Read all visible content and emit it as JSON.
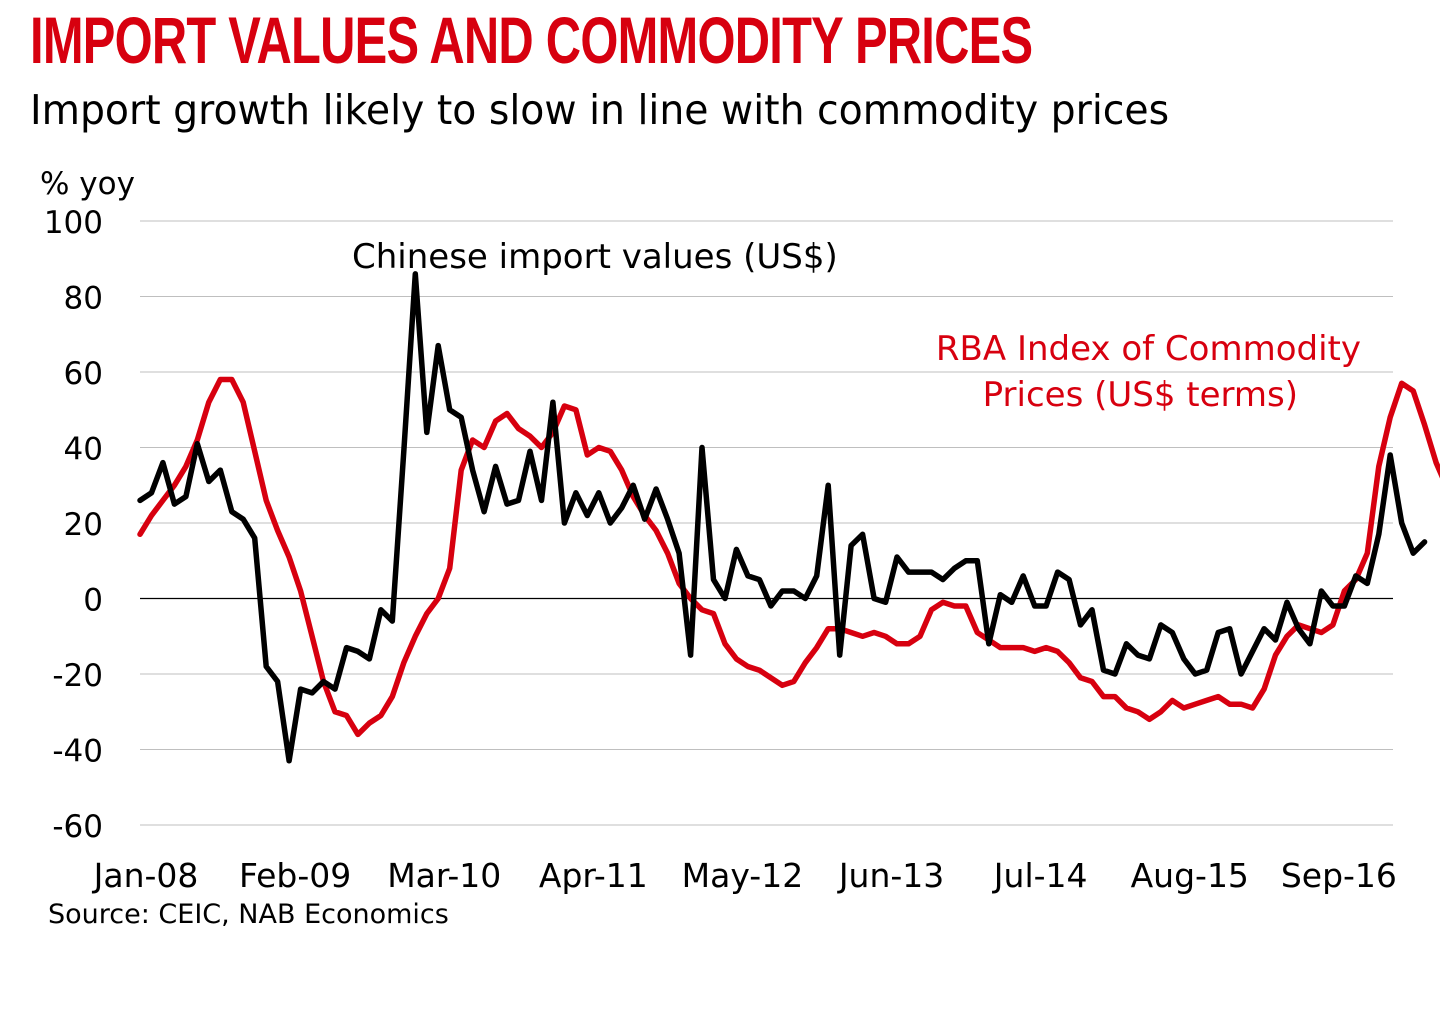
{
  "title": "IMPORT VALUES AND COMMODITY PRICES",
  "subtitle": "Import growth likely to slow in line with commodity prices",
  "source": "Source: CEIC, NAB Economics",
  "colors": {
    "title": "#d7000f",
    "commodity_series": "#d7000f",
    "import_series": "#000000",
    "grid": "#bfbfbf"
  },
  "chart_data": {
    "type": "line",
    "ylabel": "% yoy",
    "ylim": [
      -60,
      100
    ],
    "y_ticks": [
      100,
      80,
      60,
      40,
      20,
      0,
      -20,
      -40,
      -60
    ],
    "x_tick_labels": [
      "Jan-08",
      "Feb-09",
      "Mar-10",
      "Apr-11",
      "May-12",
      "Jun-13",
      "Jul-14",
      "Aug-15",
      "Sep-16"
    ],
    "grid": true,
    "series": [
      {
        "name": "Chinese import values (US$)",
        "color": "#000000",
        "start": "Jan-08",
        "frequency": "monthly",
        "values": [
          26,
          28,
          36,
          25,
          27,
          41,
          31,
          34,
          23,
          21,
          16,
          -18,
          -22,
          -43,
          -24,
          -25,
          -22,
          -24,
          -13,
          -14,
          -16,
          -3,
          -6,
          39,
          86,
          44,
          67,
          50,
          48,
          34,
          23,
          35,
          25,
          26,
          39,
          26,
          52,
          20,
          28,
          22,
          28,
          20,
          24,
          30,
          21,
          29,
          21,
          12,
          -15,
          40,
          5,
          0,
          13,
          6,
          5,
          -2,
          2,
          2,
          0,
          6,
          30,
          -15,
          14,
          17,
          0,
          -1,
          11,
          7,
          7,
          7,
          5,
          8,
          10,
          10,
          -12,
          1,
          -1,
          6,
          -2,
          -2,
          7,
          5,
          -7,
          -3,
          -19,
          -20,
          -12,
          -15,
          -16,
          -7,
          -9,
          -16,
          -20,
          -19,
          -9,
          -8,
          -20,
          -14,
          -8,
          -11,
          -1,
          -8,
          -12,
          2,
          -2,
          -2,
          6,
          4,
          17,
          38,
          20,
          12,
          15
        ]
      },
      {
        "name": "RBA Index of Commodity Prices (US$ terms)",
        "color": "#d7000f",
        "start": "Jan-08",
        "frequency": "monthly",
        "values": [
          17,
          22,
          26,
          30,
          35,
          42,
          52,
          58,
          58,
          52,
          39,
          26,
          18,
          11,
          2,
          -10,
          -22,
          -30,
          -31,
          -36,
          -33,
          -31,
          -26,
          -17,
          -10,
          -4,
          0,
          8,
          34,
          42,
          40,
          47,
          49,
          45,
          43,
          40,
          44,
          51,
          50,
          38,
          40,
          39,
          34,
          27,
          22,
          18,
          12,
          4,
          0,
          -3,
          -4,
          -12,
          -16,
          -18,
          -19,
          -21,
          -23,
          -22,
          -17,
          -13,
          -8,
          -8,
          -9,
          -10,
          -9,
          -10,
          -12,
          -12,
          -10,
          -3,
          -1,
          -2,
          -2,
          -9,
          -11,
          -13,
          -13,
          -13,
          -14,
          -13,
          -14,
          -17,
          -21,
          -22,
          -26,
          -26,
          -29,
          -30,
          -32,
          -30,
          -27,
          -29,
          -28,
          -27,
          -26,
          -28,
          -28,
          -29,
          -24,
          -15,
          -10,
          -7,
          -8,
          -9,
          -7,
          2,
          5,
          12,
          35,
          48,
          57,
          55,
          46,
          36,
          29
        ]
      }
    ],
    "annotations": [
      {
        "text": "Chinese import values (US$)",
        "series": 0
      },
      {
        "text_lines": [
          "RBA Index of Commodity",
          "Prices (US$ terms)"
        ],
        "series": 1
      }
    ]
  }
}
